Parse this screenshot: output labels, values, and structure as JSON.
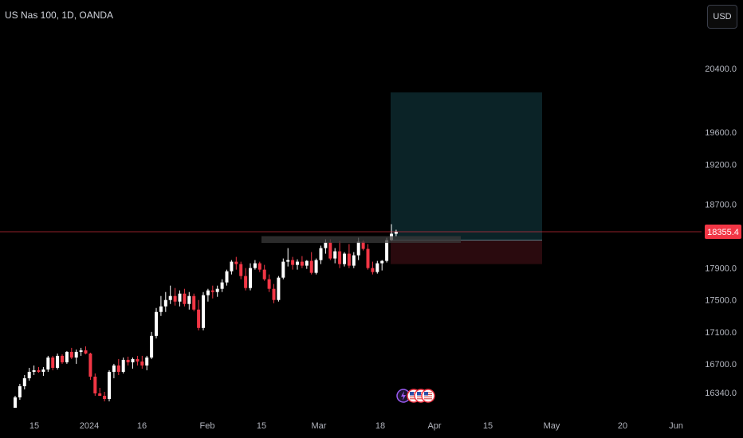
{
  "header": {
    "symbol_title": "US Nas 100, 1D, OANDA",
    "currency_button": "USD"
  },
  "colors": {
    "background": "#000000",
    "up_candle": "#ffffff",
    "down_candle": "#f23645",
    "profit_zone": "#0b2327",
    "loss_zone": "#2a0a0e",
    "price_line": "#f23645",
    "price_tag": "#f23645",
    "entry_line": "#5b7c86"
  },
  "events": {
    "icons": [
      "lightning-icon",
      "us-flag-icon",
      "us-flag-icon",
      "us-flag-icon"
    ]
  },
  "chart_data": {
    "type": "candlestick",
    "symbol": "US Nas 100",
    "interval": "1D",
    "source": "OANDA",
    "current_price": 18355.4,
    "current_price_label": "18355.4",
    "y_ticks": [
      "20400.0",
      "19600.0",
      "19200.0",
      "18700.0",
      "17900.0",
      "17500.0",
      "17100.0",
      "16700.0",
      "16340.0"
    ],
    "x_ticks": [
      "15",
      "2024",
      "16",
      "Feb",
      "15",
      "Mar",
      "18",
      "Apr",
      "15",
      "May",
      "20",
      "Jun"
    ],
    "position": {
      "type": "long",
      "entry": 18250,
      "target": 20100,
      "stop": 17950
    },
    "zone": {
      "from": 18215,
      "to": 18300
    },
    "candles": [
      [
        16150,
        16300,
        16150,
        16280
      ],
      [
        16280,
        16450,
        16250,
        16420
      ],
      [
        16420,
        16560,
        16380,
        16520
      ],
      [
        16520,
        16650,
        16490,
        16600
      ],
      [
        16600,
        16680,
        16560,
        16620
      ],
      [
        16620,
        16660,
        16590,
        16600
      ],
      [
        16600,
        16660,
        16550,
        16630
      ],
      [
        16630,
        16800,
        16600,
        16780
      ],
      [
        16780,
        16800,
        16620,
        16650
      ],
      [
        16650,
        16830,
        16630,
        16800
      ],
      [
        16800,
        16820,
        16700,
        16720
      ],
      [
        16720,
        16860,
        16700,
        16850
      ],
      [
        16850,
        16900,
        16760,
        16780
      ],
      [
        16780,
        16880,
        16700,
        16850
      ],
      [
        16850,
        16900,
        16800,
        16870
      ],
      [
        16870,
        16920,
        16820,
        16830
      ],
      [
        16830,
        16840,
        16500,
        16540
      ],
      [
        16540,
        16580,
        16300,
        16330
      ],
      [
        16330,
        16400,
        16300,
        16300
      ],
      [
        16300,
        16350,
        16230,
        16260
      ],
      [
        16260,
        16620,
        16230,
        16600
      ],
      [
        16600,
        16700,
        16520,
        16680
      ],
      [
        16680,
        16760,
        16560,
        16600
      ],
      [
        16600,
        16780,
        16580,
        16750
      ],
      [
        16750,
        16790,
        16680,
        16720
      ],
      [
        16720,
        16780,
        16640,
        16760
      ],
      [
        16760,
        16800,
        16680,
        16730
      ],
      [
        16730,
        16800,
        16640,
        16680
      ],
      [
        16680,
        16800,
        16620,
        16780
      ],
      [
        16780,
        17100,
        16760,
        17050
      ],
      [
        17050,
        17400,
        17020,
        17350
      ],
      [
        17350,
        17550,
        17300,
        17420
      ],
      [
        17420,
        17600,
        17350,
        17500
      ],
      [
        17500,
        17680,
        17450,
        17550
      ],
      [
        17550,
        17650,
        17430,
        17480
      ],
      [
        17480,
        17620,
        17420,
        17580
      ],
      [
        17580,
        17640,
        17420,
        17450
      ],
      [
        17450,
        17600,
        17380,
        17550
      ],
      [
        17550,
        17580,
        17360,
        17380
      ],
      [
        17380,
        17500,
        17120,
        17150
      ],
      [
        17150,
        17600,
        17120,
        17560
      ],
      [
        17560,
        17640,
        17480,
        17620
      ],
      [
        17620,
        17680,
        17520,
        17600
      ],
      [
        17600,
        17680,
        17540,
        17640
      ],
      [
        17640,
        17760,
        17600,
        17720
      ],
      [
        17720,
        17880,
        17680,
        17860
      ],
      [
        17860,
        18000,
        17820,
        17980
      ],
      [
        17980,
        18040,
        17880,
        17950
      ],
      [
        17950,
        17980,
        17760,
        17800
      ],
      [
        17800,
        17900,
        17620,
        17650
      ],
      [
        17650,
        17960,
        17620,
        17900
      ],
      [
        17900,
        18000,
        17880,
        17960
      ],
      [
        17960,
        17980,
        17850,
        17880
      ],
      [
        17880,
        17940,
        17740,
        17760
      ],
      [
        17760,
        17820,
        17600,
        17640
      ],
      [
        17640,
        17700,
        17460,
        17500
      ],
      [
        17500,
        17800,
        17480,
        17780
      ],
      [
        17780,
        18020,
        17760,
        17980
      ],
      [
        17980,
        18150,
        17920,
        18000
      ],
      [
        18000,
        18040,
        17880,
        17940
      ],
      [
        17940,
        18010,
        17880,
        17980
      ],
      [
        17980,
        18050,
        17900,
        17930
      ],
      [
        17930,
        18000,
        17890,
        17990
      ],
      [
        17990,
        18100,
        17820,
        17840
      ],
      [
        17840,
        18020,
        17820,
        18000
      ],
      [
        18000,
        18180,
        17950,
        18150
      ],
      [
        18150,
        18260,
        18080,
        18220
      ],
      [
        18220,
        18260,
        18000,
        18020
      ],
      [
        18020,
        18150,
        17960,
        18110
      ],
      [
        18110,
        18240,
        17900,
        17950
      ],
      [
        17950,
        18100,
        17920,
        18080
      ],
      [
        18080,
        18200,
        17900,
        17930
      ],
      [
        17930,
        18100,
        17900,
        18060
      ],
      [
        18060,
        18280,
        18000,
        18230
      ],
      [
        18230,
        18250,
        18120,
        18140
      ],
      [
        18140,
        18200,
        17880,
        17900
      ],
      [
        17900,
        17980,
        17820,
        17850
      ],
      [
        17850,
        17990,
        17830,
        17960
      ],
      [
        17960,
        18000,
        17870,
        17990
      ],
      [
        17990,
        18280,
        17970,
        18250
      ],
      [
        18250,
        18450,
        18240,
        18330
      ],
      [
        18330,
        18380,
        18300,
        18355
      ]
    ]
  }
}
